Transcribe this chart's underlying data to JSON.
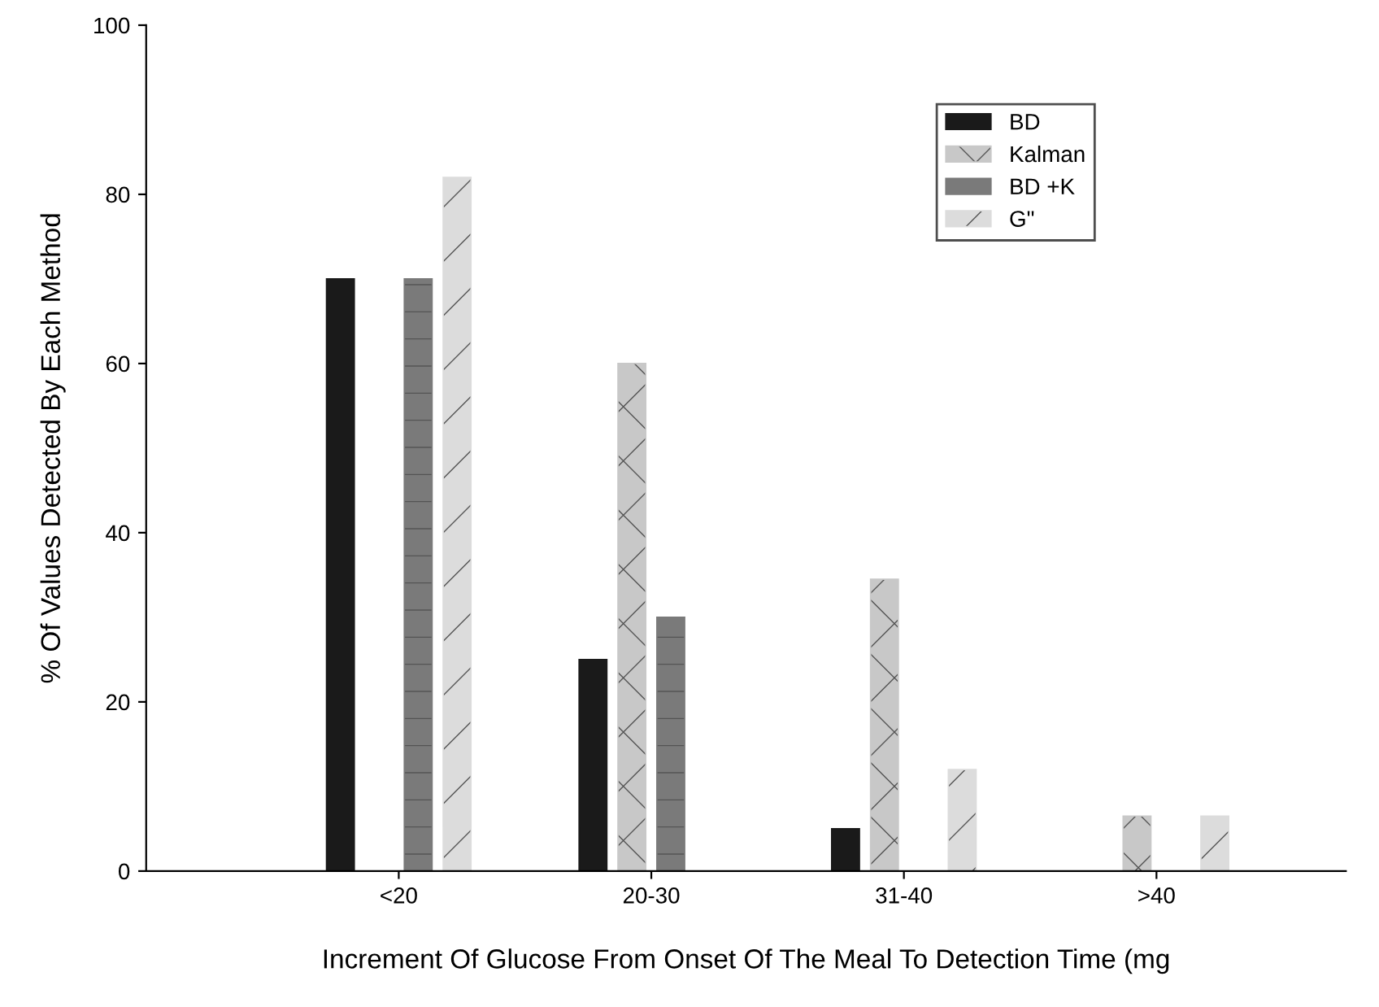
{
  "chart_data": {
    "type": "bar",
    "xlabel": "Increment Of Glucose From Onset Of The Meal To Detection Time (mg",
    "ylabel": "% Of Values Detected By Each Method",
    "categories": [
      "<20",
      "20-30",
      "31-40",
      ">40"
    ],
    "series": [
      {
        "name": "BD",
        "color": "#1a1a1a",
        "values": [
          70,
          25,
          5,
          0
        ]
      },
      {
        "name": "Kalman",
        "color": "#c8c8c8",
        "values": [
          0,
          60,
          34.5,
          6.5
        ]
      },
      {
        "name": "BD +K",
        "color": "#7a7a7a",
        "values": [
          70,
          30,
          0,
          0
        ]
      },
      {
        "name": "G\"",
        "color": "#dcdcdc",
        "values": [
          82,
          0,
          12,
          6.5
        ]
      }
    ],
    "ylim": [
      0,
      100
    ],
    "yticks": [
      0,
      20,
      40,
      60,
      80,
      100
    ],
    "grid": false,
    "legend": "top right"
  }
}
